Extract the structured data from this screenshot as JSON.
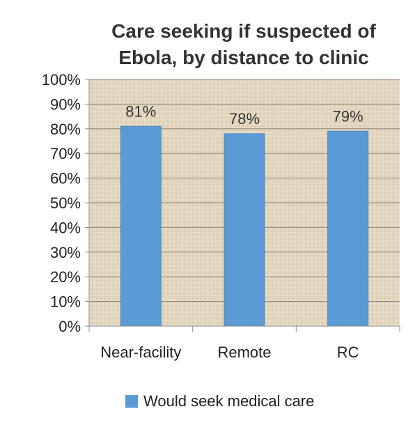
{
  "chart_data": {
    "type": "bar",
    "title_lines": [
      "Care seeking if suspected of",
      "Ebola, by distance to clinic"
    ],
    "categories": [
      "Near-facility",
      "Remote",
      "RC"
    ],
    "series": [
      {
        "name": "Would seek medical care",
        "values": [
          81,
          78,
          79
        ],
        "color": "#5b9bd5"
      }
    ],
    "data_labels": [
      "81%",
      "78%",
      "79%"
    ],
    "y_ticks": [
      "0%",
      "10%",
      "20%",
      "30%",
      "40%",
      "50%",
      "60%",
      "70%",
      "80%",
      "90%",
      "100%"
    ],
    "ylim": [
      0,
      100
    ],
    "grid": true,
    "legend_position": "bottom",
    "plot_background": "#e3d6bf"
  }
}
